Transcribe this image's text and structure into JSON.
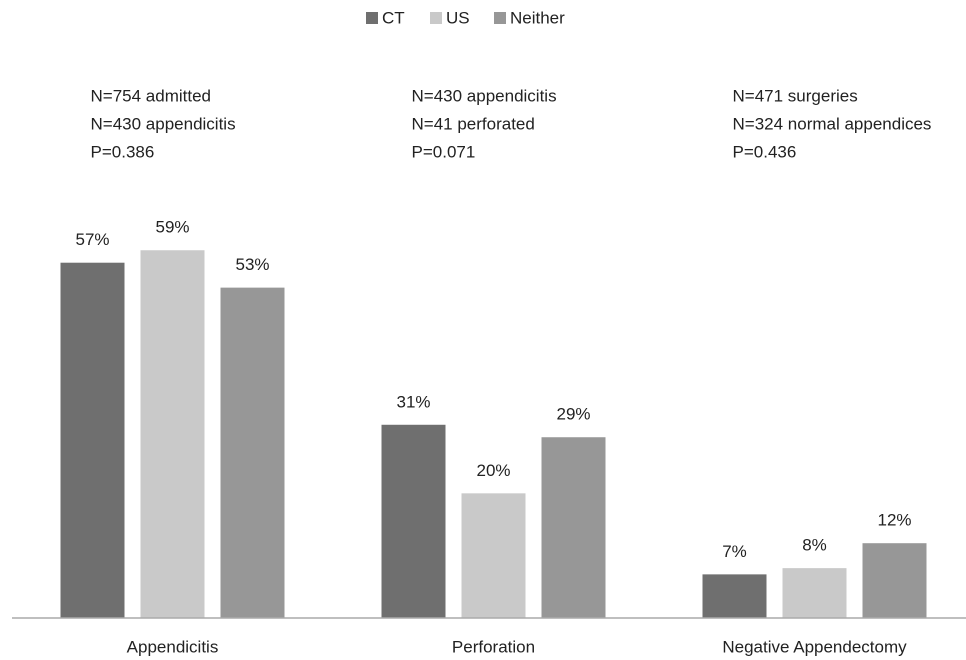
{
  "chart_data": {
    "type": "bar",
    "categories": [
      "Appendicitis",
      "Perforation",
      "Negative Appendectomy"
    ],
    "series": [
      {
        "name": "CT",
        "color": "#6f6f6f",
        "values": [
          57,
          31,
          7
        ],
        "value_labels": [
          "57%",
          "31%",
          "7%"
        ]
      },
      {
        "name": "US",
        "color": "#c9c9c9",
        "values": [
          59,
          20,
          8
        ],
        "value_labels": [
          "59%",
          "20%",
          "8%"
        ]
      },
      {
        "name": "Neither",
        "color": "#979797",
        "values": [
          53,
          29,
          12
        ],
        "value_labels": [
          "53%",
          "29%",
          "12%"
        ]
      }
    ],
    "annotations": [
      [
        "N=754 admitted",
        "N=430 appendicitis",
        "P=0.386"
      ],
      [
        "N=430 appendicitis",
        "N=41 perforated",
        "P=0.071"
      ],
      [
        "N=471 surgeries",
        "N=324 normal appendices",
        "P=0.436"
      ]
    ],
    "ylim": [
      0,
      60
    ],
    "legend": "top"
  }
}
